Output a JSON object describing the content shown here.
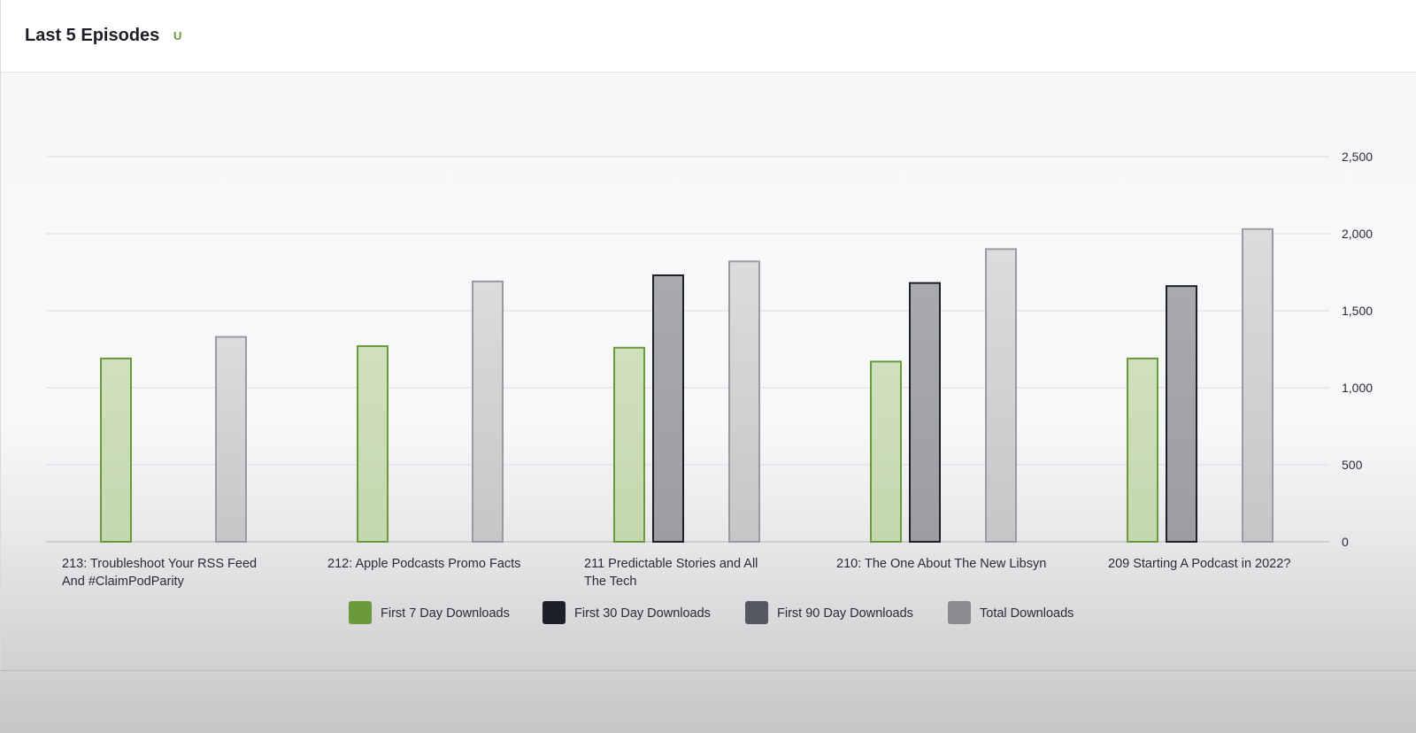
{
  "header": {
    "title": "Last 5 Episodes",
    "badge": "U"
  },
  "chart_data": {
    "type": "bar",
    "categories": [
      "213: Troubleshoot Your RSS Feed And #ClaimPodParity",
      "212: Apple Podcasts Promo Facts",
      "211 Predictable Stories and All The Tech",
      "210: The One About The New Libsyn",
      "209 Starting A Podcast in 2022?"
    ],
    "series": [
      {
        "name": "First 7 Day Downloads",
        "color": "#6a9a3b",
        "values": [
          1190,
          1270,
          1260,
          1170,
          1190
        ]
      },
      {
        "name": "First 30 Day Downloads",
        "color": "#1e2029",
        "values": [
          null,
          null,
          1730,
          1680,
          1660
        ]
      },
      {
        "name": "First 90 Day Downloads",
        "color": "#555761",
        "values": [
          null,
          null,
          null,
          null,
          null
        ]
      },
      {
        "name": "Total Downloads",
        "color": "#8a8b8e",
        "values": [
          1330,
          1690,
          1820,
          1900,
          2030
        ]
      }
    ],
    "yticks": [
      "0",
      "500",
      "1,000",
      "1,500",
      "2,000",
      "2,500"
    ],
    "ylim": [
      0,
      2500
    ],
    "y_axis_position": "right",
    "grid": true,
    "legend_position": "bottom"
  }
}
